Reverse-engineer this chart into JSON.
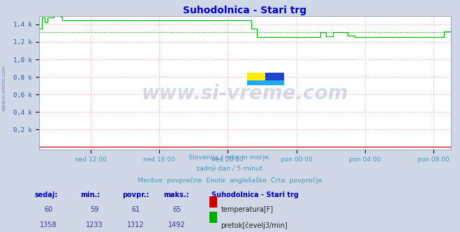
{
  "title": "Suhodolnica - Stari trg",
  "title_color": "#0000cc",
  "bg_color": "#d0d8e8",
  "plot_bg_color": "#ffffff",
  "watermark_text": "www.si-vreme.com",
  "watermark_color": "#1a3a6a",
  "watermark_alpha": 0.18,
  "ylabel_ticks": [
    "0,2 k",
    "0,4 k",
    "0,6 k",
    "0,8 k",
    "1,0 k",
    "1,2 k",
    "1,4 k"
  ],
  "ylabel_values": [
    200,
    400,
    600,
    800,
    1000,
    1200,
    1400
  ],
  "ymax": 1493,
  "ymin": -30,
  "grid_color": "#ff9999",
  "x_labels": [
    "ned 12:00",
    "ned 16:00",
    "ned 20:00",
    "pon 00:00",
    "pon 04:00",
    "pon 08:00"
  ],
  "subtitle_lines": [
    "Slovenija / reke in morje.",
    "zadnji dan / 5 minut.",
    "Meritve: povprečne  Enote: anglešaške  Črta: povprečje"
  ],
  "subtitle_color": "#4499bb",
  "table_header_color": "#0000bb",
  "table_value_color": "#333388",
  "table_title": "Suhodolnica - Stari trg",
  "row1": {
    "sedaj": "60",
    "min": "59",
    "povpr": "61",
    "maks": "65",
    "color": "#cc0000",
    "label": "temperatura[F]"
  },
  "row2": {
    "sedaj": "1358",
    "min": "1233",
    "povpr": "1312",
    "maks": "1492",
    "color": "#00aa00",
    "label": "pretok[čevelj3/min]"
  },
  "temp_color": "#cc0000",
  "flow_color": "#00bb00",
  "avg_color": "#00aa00",
  "n_points": 288,
  "sidewatermark": "www.si-vreme.com"
}
